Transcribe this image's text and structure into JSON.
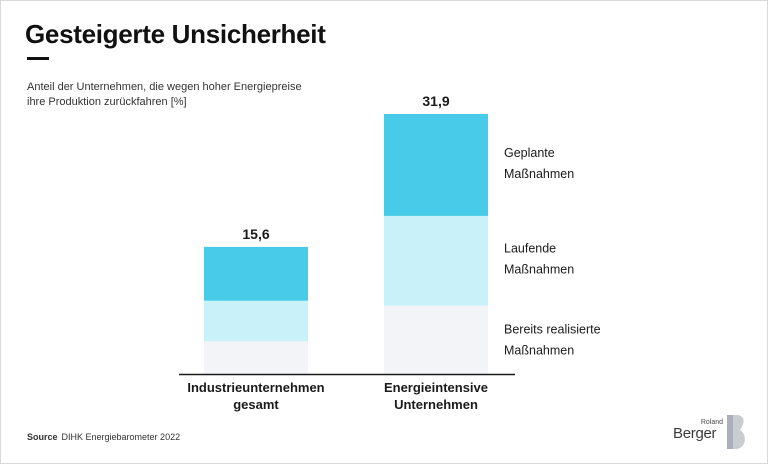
{
  "title": "Gesteigerte Unsicherheit",
  "subtitle_lines": [
    "Anteil der Unternehmen, die wegen hoher Energiepreise",
    "ihre Produktion zurückfahren [%]"
  ],
  "source": {
    "label": "Source",
    "text": "DIHK Energiebarometer 2022"
  },
  "logo": {
    "small": "Roland",
    "big": "Berger"
  },
  "colors": {
    "planned": "#48cbe8",
    "ongoing": "#c8f1f9",
    "realized": "#f3f4f7",
    "axis": "#1a1a1a"
  },
  "chart_data": {
    "type": "bar",
    "stacked": true,
    "title": "Gesteigerte Unsicherheit",
    "ylabel": "Anteil der Unternehmen, die wegen hoher Energiepreise ihre Produktion zurückfahren [%]",
    "ylim": [
      0,
      35
    ],
    "categories": [
      [
        "Industrieunternehmen",
        "gesamt"
      ],
      [
        "Energieintensive",
        "Unternehmen"
      ]
    ],
    "totals": [
      "15,6",
      "31,9"
    ],
    "series": [
      {
        "name": "Bereits realisierte Maßnahmen",
        "legend_lines": [
          "Bereits realisierte",
          "Maßnahmen"
        ],
        "color_key": "realized",
        "values": [
          4.0,
          8.4
        ]
      },
      {
        "name": "Laufende Maßnahmen",
        "legend_lines": [
          "Laufende",
          "Maßnahmen"
        ],
        "color_key": "ongoing",
        "values": [
          5.0,
          11.0
        ]
      },
      {
        "name": "Geplante Maßnahmen",
        "legend_lines": [
          "Geplante",
          "Maßnahmen"
        ],
        "color_key": "planned",
        "values": [
          6.6,
          12.5
        ]
      }
    ]
  }
}
